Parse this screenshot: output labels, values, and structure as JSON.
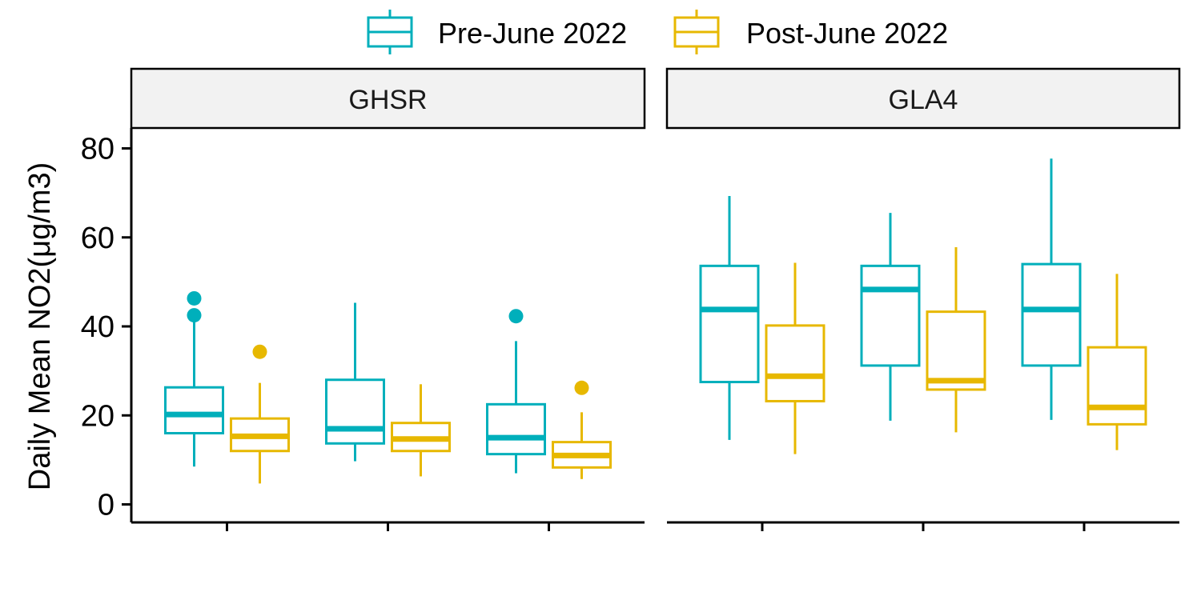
{
  "chart_data": {
    "type": "box",
    "ylabel": "Daily Mean NO2(μg/m3)",
    "ylim": [
      0,
      80
    ],
    "yticks": [
      0,
      20,
      40,
      60,
      80
    ],
    "grid": false,
    "legend_position": "top",
    "series": [
      {
        "name": "Pre-June 2022",
        "color": "#00AFBB"
      },
      {
        "name": "Post-June 2022",
        "color": "#E7B800"
      }
    ],
    "panels": [
      {
        "title": "GHSR",
        "groups": [
          {
            "boxes": [
              {
                "series": 0,
                "min": 8.5,
                "q1": 16,
                "median": 20.2,
                "q3": 26.3,
                "max": 42,
                "outliers": [
                  42.5,
                  46.3
                ]
              },
              {
                "series": 1,
                "min": 4.7,
                "q1": 12,
                "median": 15.3,
                "q3": 19.3,
                "max": 27.3,
                "outliers": [
                  34.3
                ]
              }
            ]
          },
          {
            "boxes": [
              {
                "series": 0,
                "min": 9.7,
                "q1": 13.7,
                "median": 17,
                "q3": 28,
                "max": 45.3,
                "outliers": []
              },
              {
                "series": 1,
                "min": 6.3,
                "q1": 12,
                "median": 14.7,
                "q3": 18.3,
                "max": 27,
                "outliers": []
              }
            ]
          },
          {
            "boxes": [
              {
                "series": 0,
                "min": 7,
                "q1": 11.3,
                "median": 15,
                "q3": 22.5,
                "max": 36.7,
                "outliers": [
                  42.3
                ]
              },
              {
                "series": 1,
                "min": 5.7,
                "q1": 8.3,
                "median": 11,
                "q3": 14,
                "max": 20.7,
                "outliers": [
                  26.2
                ]
              }
            ]
          }
        ]
      },
      {
        "title": "GLA4",
        "groups": [
          {
            "boxes": [
              {
                "series": 0,
                "min": 14.5,
                "q1": 27.5,
                "median": 43.8,
                "q3": 53.6,
                "max": 69.3,
                "outliers": []
              },
              {
                "series": 1,
                "min": 11.3,
                "q1": 23.2,
                "median": 28.8,
                "q3": 40.2,
                "max": 54.3,
                "outliers": []
              }
            ]
          },
          {
            "boxes": [
              {
                "series": 0,
                "min": 18.8,
                "q1": 31.2,
                "median": 48.3,
                "q3": 53.6,
                "max": 65.5,
                "outliers": []
              },
              {
                "series": 1,
                "min": 16.2,
                "q1": 25.8,
                "median": 27.8,
                "q3": 43.3,
                "max": 57.8,
                "outliers": []
              }
            ]
          },
          {
            "boxes": [
              {
                "series": 0,
                "min": 19,
                "q1": 31.2,
                "median": 43.8,
                "q3": 54,
                "max": 77.7,
                "outliers": []
              },
              {
                "series": 1,
                "min": 12.2,
                "q1": 18,
                "median": 21.8,
                "q3": 35.3,
                "max": 51.8,
                "outliers": []
              }
            ]
          }
        ]
      }
    ]
  }
}
